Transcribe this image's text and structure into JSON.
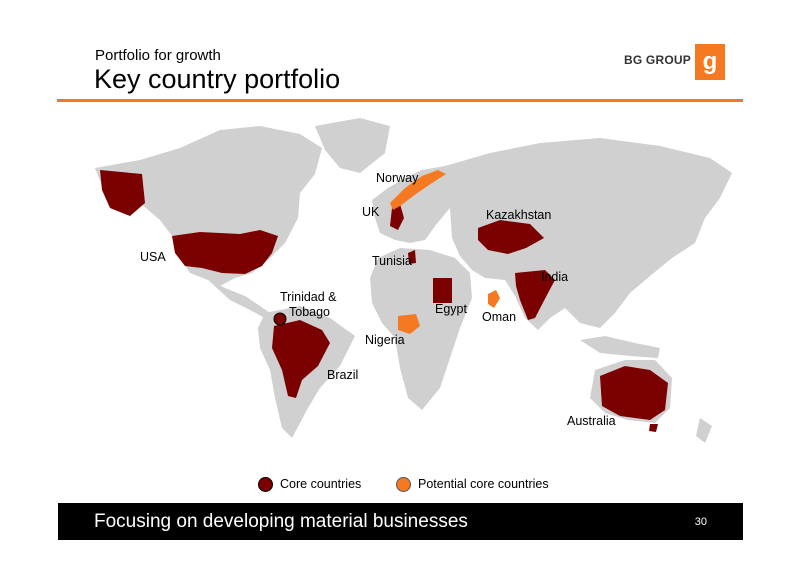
{
  "header": {
    "subtitle": "Portfolio for growth",
    "title": "Key country portfolio",
    "logo_text": "BG GROUP",
    "logo_letter": "g",
    "accent_color": "#f47920"
  },
  "map": {
    "land_color": "#d0d0d0",
    "core_color": "#7b0000",
    "potential_color": "#f47920",
    "labels": {
      "norway": "Norway",
      "uk": "UK",
      "kazakhstan": "Kazakhstan",
      "usa": "USA",
      "tunisia": "Tunisia",
      "india": "India",
      "trinidad_1": "Trinidad &",
      "trinidad_2": "Tobago",
      "egypt": "Egypt",
      "oman": "Oman",
      "nigeria": "Nigeria",
      "brazil": "Brazil",
      "australia": "Australia"
    }
  },
  "legend": {
    "core_label": "Core countries",
    "potential_label": "Potential core countries"
  },
  "footer": {
    "text": "Focusing on developing material businesses",
    "page_number": "30"
  }
}
